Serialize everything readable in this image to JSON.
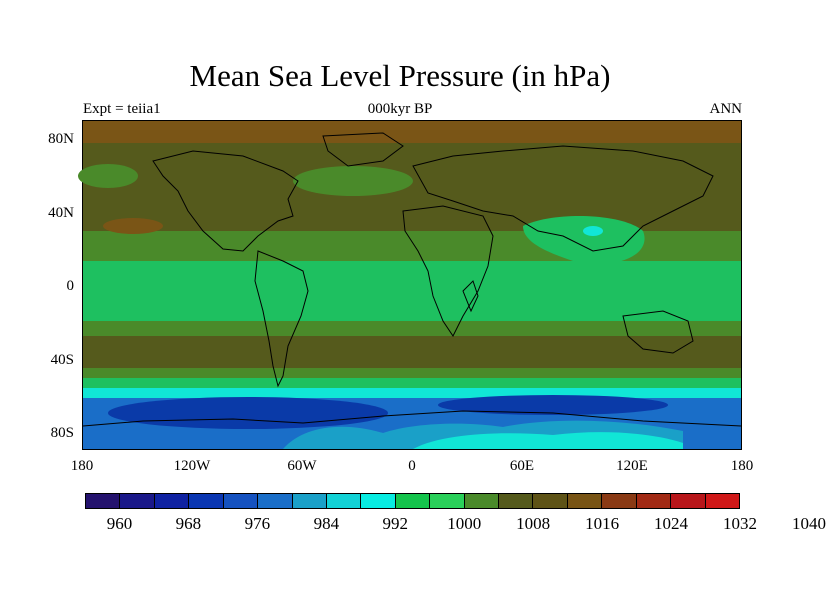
{
  "header": {
    "title": "Mean Sea Level Pressure (in hPa)",
    "subtitle": "000kyr BP",
    "left_label": "Expt = teiia1",
    "right_label": "ANN"
  },
  "map": {
    "lat_labels": [
      "80N",
      "40N",
      "0",
      "40S",
      "80S"
    ],
    "lon_labels": [
      "180",
      "120W",
      "60W",
      "0",
      "60E",
      "120E",
      "180"
    ],
    "pressure_band_colors": {
      "polar_north": "#7a5516",
      "high_pressure": "#555a1c",
      "mid": "#4a8a2a",
      "low_tropical": "#1ec060",
      "very_low": "#05d86c",
      "southern_cyan": "#1ec8c8",
      "southern_teal": "#1aa0c8",
      "southern_blue": "#1a6ec8",
      "antarctic_deep": "#0a3aa8",
      "antarctic_cyan": "#11e6d6"
    }
  },
  "colorbar": {
    "colors": [
      "#24126e",
      "#1a1889",
      "#0f22a2",
      "#0a36b2",
      "#1552c0",
      "#1a6ec8",
      "#1aa0c8",
      "#12d2d6",
      "#08ece2",
      "#14c44c",
      "#2ad05a",
      "#4a8a2a",
      "#555a1c",
      "#5e5316",
      "#785414",
      "#8a3a14",
      "#a22a14",
      "#b8161a",
      "#d01818"
    ],
    "labels": [
      "960",
      "968",
      "976",
      "984",
      "992",
      "1000",
      "1008",
      "1016",
      "1024",
      "1032",
      "1040"
    ]
  }
}
